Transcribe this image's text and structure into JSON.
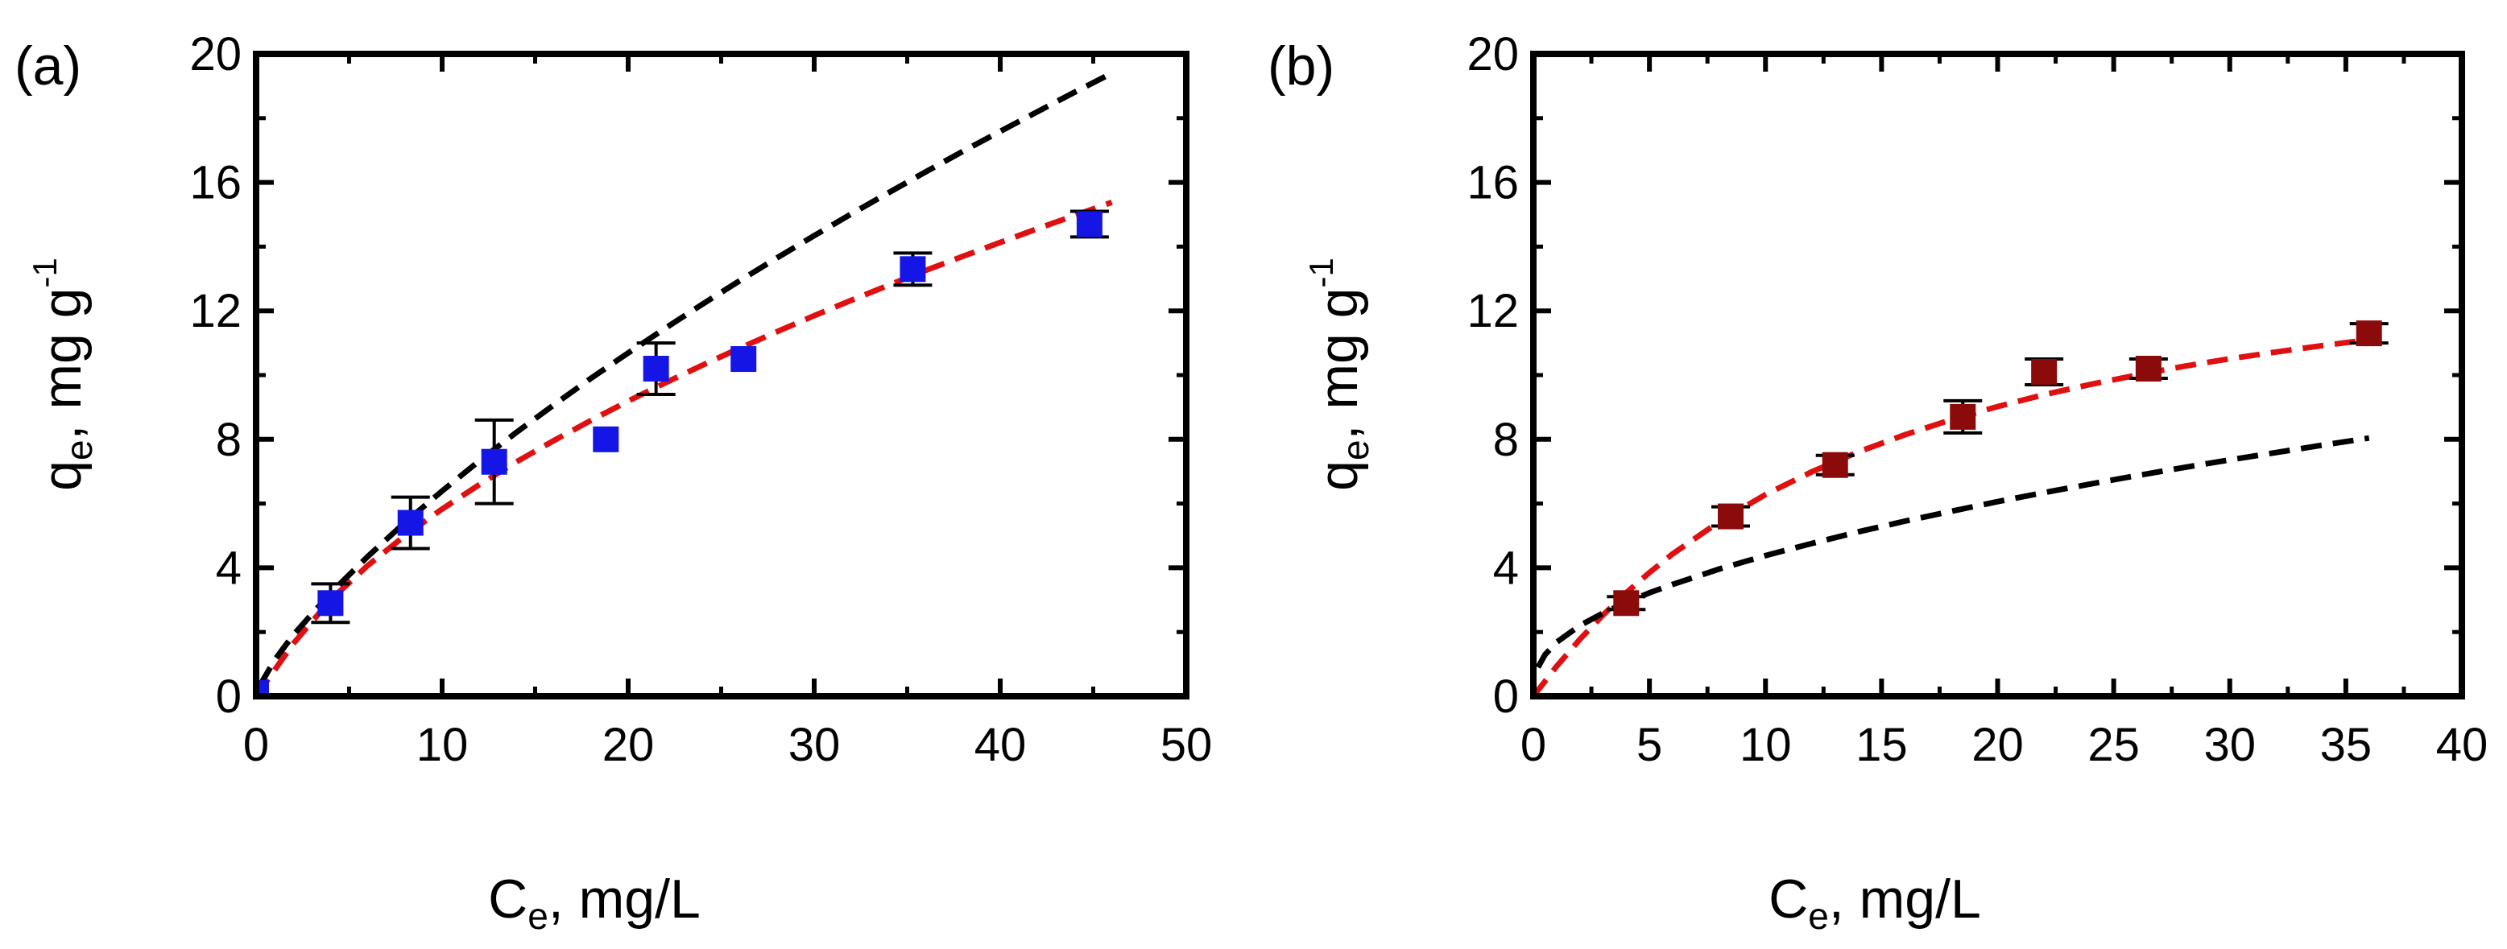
{
  "chart_data": [
    {
      "panel_label": "(a)",
      "type": "scatter",
      "xlabel": {
        "main": "C",
        "sub": "e",
        "rest": ", mg/L"
      },
      "ylabel": {
        "main": "q",
        "sub": "e",
        "rest": ", mg g",
        "sup": "-1"
      },
      "xlim": [
        0,
        50
      ],
      "ylim": [
        0,
        20
      ],
      "xticks": [
        0,
        10,
        20,
        30,
        40,
        50
      ],
      "yticks": [
        0,
        4,
        8,
        12,
        16,
        20
      ],
      "marker_color": "#1515e6",
      "points": [
        {
          "x": 0.0,
          "y": 0.1,
          "err": 0
        },
        {
          "x": 4.0,
          "y": 2.9,
          "err": 0.6
        },
        {
          "x": 8.3,
          "y": 5.4,
          "err": 0.8
        },
        {
          "x": 12.8,
          "y": 7.3,
          "err": 1.3
        },
        {
          "x": 18.8,
          "y": 8.0,
          "err": 0
        },
        {
          "x": 21.5,
          "y": 10.2,
          "err": 0.8
        },
        {
          "x": 26.2,
          "y": 10.5,
          "err": 0
        },
        {
          "x": 35.3,
          "y": 13.3,
          "err": 0.5
        },
        {
          "x": 44.8,
          "y": 14.7,
          "err": 0.4
        }
      ],
      "fits": [
        {
          "name": "red fit",
          "color": "#e01010",
          "x": [
            0,
            2,
            4,
            6,
            8,
            10,
            12,
            14,
            16,
            18,
            20,
            22,
            24,
            26,
            28,
            30,
            32,
            34,
            36,
            38,
            40,
            42,
            44,
            46
          ],
          "y": [
            0,
            1.64,
            3.0,
            4.07,
            5.0,
            5.83,
            6.59,
            7.3,
            7.96,
            8.59,
            9.19,
            9.76,
            10.31,
            10.84,
            11.35,
            11.85,
            12.33,
            12.8,
            13.26,
            13.7,
            14.13,
            14.56,
            14.97,
            15.38
          ]
        },
        {
          "name": "black fit",
          "color": "#000000",
          "x": [
            0.2,
            1,
            2,
            4,
            6,
            8,
            10,
            12,
            14,
            16,
            18,
            20,
            22,
            24,
            26,
            28,
            30,
            32,
            34,
            36,
            38,
            40,
            42,
            44,
            46
          ],
          "y": [
            0.33,
            1.13,
            1.91,
            3.21,
            4.35,
            5.41,
            6.39,
            7.33,
            8.22,
            9.07,
            9.9,
            10.69,
            11.46,
            12.21,
            12.94,
            13.65,
            14.34,
            15.02,
            15.68,
            16.33,
            16.97,
            17.59,
            18.2,
            18.81,
            19.4
          ]
        }
      ]
    },
    {
      "panel_label": "(b)",
      "type": "scatter",
      "xlabel": {
        "main": "C",
        "sub": "e",
        "rest": ", mg/L"
      },
      "ylabel": {
        "main": "q",
        "sub": "e",
        "rest": ", mg g",
        "sup": "-1"
      },
      "xlim": [
        0,
        40
      ],
      "ylim": [
        0,
        20
      ],
      "xticks": [
        0,
        5,
        10,
        15,
        20,
        25,
        30,
        35,
        40
      ],
      "yticks": [
        0,
        4,
        8,
        12,
        16,
        20
      ],
      "marker_color": "#8b0a0a",
      "points": [
        {
          "x": 4.0,
          "y": 2.9,
          "err": 0.2
        },
        {
          "x": 8.5,
          "y": 5.6,
          "err": 0.3
        },
        {
          "x": 13.0,
          "y": 7.2,
          "err": 0.3
        },
        {
          "x": 18.5,
          "y": 8.7,
          "err": 0.5
        },
        {
          "x": 22.0,
          "y": 10.1,
          "err": 0.4
        },
        {
          "x": 26.5,
          "y": 10.2,
          "err": 0.3
        },
        {
          "x": 36.0,
          "y": 11.3,
          "err": 0.3
        }
      ],
      "fits": [
        {
          "name": "red fit",
          "color": "#e01010",
          "x": [
            0,
            1,
            2,
            3,
            4,
            5,
            6,
            8,
            10,
            12,
            14,
            16,
            18,
            20,
            22,
            24,
            26,
            28,
            30,
            32,
            34,
            36
          ],
          "y": [
            0,
            0.93,
            1.77,
            2.53,
            3.22,
            3.85,
            4.43,
            5.43,
            6.28,
            6.99,
            7.61,
            8.14,
            8.61,
            9.02,
            9.39,
            9.71,
            10.0,
            10.27,
            10.51,
            10.72,
            10.92,
            11.1
          ]
        },
        {
          "name": "black fit",
          "color": "#000000",
          "x": [
            0.2,
            0.5,
            1,
            2,
            3,
            4,
            5,
            6,
            8,
            10,
            12,
            14,
            16,
            18,
            20,
            22,
            24,
            26,
            28,
            30,
            32,
            34,
            36
          ],
          "y": [
            0.9,
            1.29,
            1.68,
            2.2,
            2.59,
            2.92,
            3.22,
            3.48,
            3.96,
            4.38,
            4.76,
            5.12,
            5.45,
            5.76,
            6.06,
            6.34,
            6.61,
            6.87,
            7.12,
            7.36,
            7.59,
            7.82,
            8.04
          ]
        }
      ]
    }
  ]
}
